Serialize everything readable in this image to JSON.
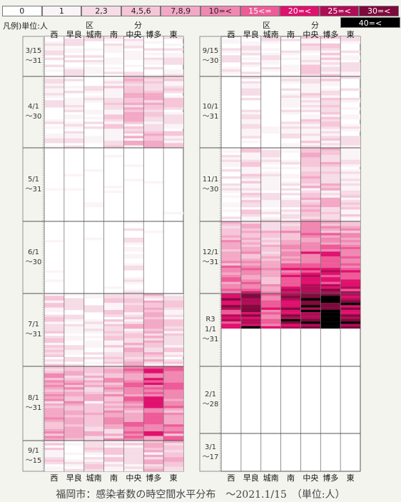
{
  "legend": {
    "unit_label": "凡例)単位:人",
    "cells": [
      {
        "label": "0",
        "color": "#ffffff"
      },
      {
        "label": "1",
        "color": "#fbf4f7"
      },
      {
        "label": "2,3",
        "color": "#f6dce6"
      },
      {
        "label": "4,5,6",
        "color": "#f6c6d8"
      },
      {
        "label": "7,8,9",
        "color": "#f3a9c6"
      },
      {
        "label": "10=<",
        "color": "#f088b2"
      },
      {
        "label": "15<=",
        "color": "#ee5b98"
      },
      {
        "label": "20=<",
        "color": "#e0106e"
      },
      {
        "label": "25=<",
        "color": "#b00d57"
      },
      {
        "label": "30=<",
        "color": "#7e0a3c"
      }
    ],
    "last": {
      "label": "40=<",
      "color": "#000000"
    }
  },
  "header": {
    "ku": "区",
    "bun": "分"
  },
  "columns": [
    "西",
    "早良",
    "城南",
    "南",
    "中央",
    "博多",
    "東"
  ],
  "left_periods": [
    {
      "label": "3/15\n～31"
    },
    {
      "label": "4/1\n～30"
    },
    {
      "label": "5/1\n～31"
    },
    {
      "label": "6/1\n～30"
    },
    {
      "label": "7/1\n～31"
    },
    {
      "label": "8/1\n～31"
    },
    {
      "label": "9/1\n～15"
    }
  ],
  "right_periods": [
    {
      "label": "9/15\n～30"
    },
    {
      "label": "10/1\n～31"
    },
    {
      "label": "11/1\n～30"
    },
    {
      "label": "12/1\n～31"
    },
    {
      "label": "R3\n1/1\n～31"
    },
    {
      "label": "2/1\n～28"
    },
    {
      "label": "3/1\n～17"
    }
  ],
  "footer": "福岡市：感染者数の時空間水平分布　～2021.1/15　（単位:人）",
  "chart_data": {
    "type": "heatmap",
    "title": "福岡市：感染者数の時空間水平分布",
    "x_categories": [
      "西",
      "早良",
      "城南",
      "南",
      "中央",
      "博多",
      "東"
    ],
    "y_axis": "date (daily, top to bottom)",
    "date_range": [
      "2020-03-15",
      "2021-01-15"
    ],
    "unit": "人",
    "color_scale": [
      "0",
      "1",
      "2,3",
      "4,5,6",
      "7,8,9",
      "10=<",
      "15<=",
      "20=<",
      "25=<",
      "30=<",
      "40=<"
    ],
    "bands": [
      {
        "period": "3/15～31",
        "intensity": [
          1,
          1,
          1,
          1,
          1,
          1,
          1
        ]
      },
      {
        "period": "4/1～30",
        "intensity": [
          1,
          1,
          1,
          2,
          3,
          3,
          2
        ]
      },
      {
        "period": "5/1～31",
        "intensity": [
          0,
          0,
          0,
          0,
          0,
          0,
          0
        ]
      },
      {
        "period": "6/1～30",
        "intensity": [
          0,
          0,
          0,
          0,
          1,
          0,
          0
        ]
      },
      {
        "period": "7/1～31",
        "intensity": [
          2,
          1,
          1,
          2,
          3,
          3,
          2
        ]
      },
      {
        "period": "8/1～31",
        "intensity": [
          4,
          4,
          3,
          4,
          5,
          6,
          5
        ]
      },
      {
        "period": "9/1～15",
        "intensity": [
          2,
          1,
          2,
          2,
          2,
          3,
          3
        ]
      },
      {
        "period": "9/15～30",
        "intensity": [
          1,
          1,
          1,
          1,
          2,
          2,
          1
        ]
      },
      {
        "period": "10/1～31",
        "intensity": [
          0,
          1,
          0,
          1,
          2,
          2,
          1
        ]
      },
      {
        "period": "11/1～30",
        "intensity": [
          1,
          2,
          1,
          1,
          3,
          3,
          2
        ]
      },
      {
        "period": "12/1～31",
        "intensity": [
          5,
          5,
          4,
          6,
          7,
          7,
          6
        ]
      },
      {
        "period": "1/1～15",
        "intensity": [
          7,
          8,
          6,
          8,
          9,
          10,
          8
        ]
      }
    ]
  }
}
